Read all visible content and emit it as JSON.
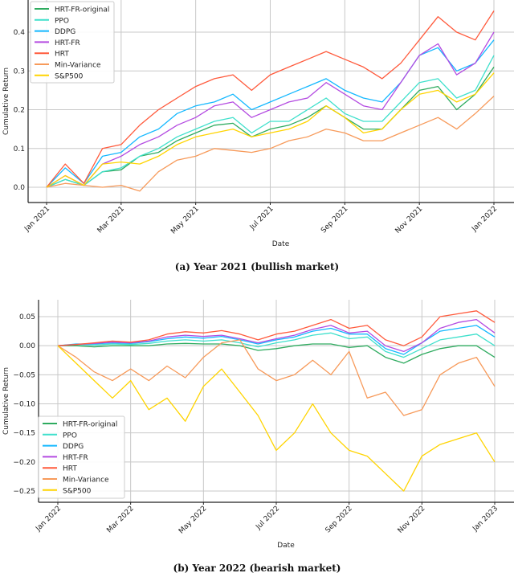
{
  "chart_data": [
    {
      "type": "line",
      "caption": "(a) Year 2021 (bullish market)",
      "xlabel": "Date",
      "ylabel": "Cumulative Return",
      "x_tick_labels": [
        "Jan 2021",
        "Mar 2021",
        "May 2021",
        "Jul 2021",
        "Sep 2021",
        "Nov 2021",
        "Jan 2022"
      ],
      "x_tick_months": [
        0,
        2,
        4,
        6,
        8,
        10,
        12
      ],
      "y_ticks": [
        0.0,
        0.1,
        0.2,
        0.3,
        0.4
      ],
      "y_tick_labels": [
        "0.0",
        "0.1",
        "0.2",
        "0.3",
        "0.4"
      ],
      "ylim": [
        -0.035,
        0.46
      ],
      "grid": true,
      "legend_position": "top-left",
      "x_months": [
        0,
        0.5,
        1,
        1.5,
        2,
        2.5,
        3,
        3.5,
        4,
        4.5,
        5,
        5.5,
        6,
        6.5,
        7,
        7.5,
        8,
        8.5,
        9,
        9.5,
        10,
        10.5,
        11,
        11.5,
        12
      ],
      "series": [
        {
          "name": "HRT-FR-original",
          "color": "#2eab5f",
          "values": [
            0,
            0.02,
            0.005,
            0.04,
            0.045,
            0.08,
            0.09,
            0.12,
            0.14,
            0.16,
            0.165,
            0.13,
            0.15,
            0.16,
            0.18,
            0.21,
            0.18,
            0.15,
            0.15,
            0.2,
            0.25,
            0.26,
            0.2,
            0.24,
            0.31
          ]
        },
        {
          "name": "PPO",
          "color": "#3fe0cc",
          "values": [
            0,
            0.02,
            0.005,
            0.04,
            0.05,
            0.08,
            0.1,
            0.13,
            0.15,
            0.17,
            0.18,
            0.14,
            0.17,
            0.17,
            0.2,
            0.23,
            0.19,
            0.17,
            0.17,
            0.22,
            0.27,
            0.28,
            0.23,
            0.25,
            0.34
          ]
        },
        {
          "name": "DDPG",
          "color": "#14b8ff",
          "values": [
            0,
            0.05,
            0.01,
            0.08,
            0.09,
            0.13,
            0.15,
            0.19,
            0.21,
            0.22,
            0.24,
            0.2,
            0.22,
            0.24,
            0.26,
            0.28,
            0.25,
            0.23,
            0.22,
            0.27,
            0.34,
            0.36,
            0.3,
            0.32,
            0.38
          ]
        },
        {
          "name": "HRT-FR",
          "color": "#b44be1",
          "values": [
            0,
            0.03,
            0.005,
            0.06,
            0.08,
            0.11,
            0.13,
            0.16,
            0.18,
            0.21,
            0.22,
            0.18,
            0.2,
            0.22,
            0.23,
            0.27,
            0.24,
            0.21,
            0.2,
            0.27,
            0.34,
            0.37,
            0.29,
            0.32,
            0.4
          ]
        },
        {
          "name": "HRT",
          "color": "#ff5a3c",
          "values": [
            0,
            0.06,
            0.01,
            0.1,
            0.11,
            0.16,
            0.2,
            0.23,
            0.26,
            0.28,
            0.29,
            0.25,
            0.29,
            0.31,
            0.33,
            0.35,
            0.33,
            0.31,
            0.28,
            0.32,
            0.38,
            0.44,
            0.4,
            0.38,
            0.455
          ]
        },
        {
          "name": "Min-Variance",
          "color": "#f79a5a",
          "values": [
            0,
            0.01,
            0.005,
            0,
            0.005,
            -0.01,
            0.04,
            0.07,
            0.08,
            0.1,
            0.095,
            0.09,
            0.1,
            0.12,
            0.13,
            0.15,
            0.14,
            0.12,
            0.12,
            0.14,
            0.16,
            0.18,
            0.15,
            0.19,
            0.235
          ]
        },
        {
          "name": "S&P500",
          "color": "#ffd400",
          "values": [
            0,
            0.03,
            0.005,
            0.06,
            0.065,
            0.06,
            0.08,
            0.11,
            0.13,
            0.14,
            0.15,
            0.13,
            0.14,
            0.15,
            0.17,
            0.21,
            0.18,
            0.14,
            0.15,
            0.2,
            0.24,
            0.25,
            0.22,
            0.24,
            0.295
          ]
        }
      ]
    },
    {
      "type": "line",
      "caption": "(b) Year 2022 (bearish market)",
      "xlabel": "Date",
      "ylabel": "Cumulative Return",
      "x_tick_labels": [
        "Jan 2022",
        "Mar 2022",
        "May 2022",
        "Jul 2022",
        "Sep 2022",
        "Nov 2022",
        "Jan 2023"
      ],
      "x_tick_months": [
        0,
        2,
        4,
        6,
        8,
        10,
        12
      ],
      "y_ticks": [
        0.05,
        0.0,
        -0.05,
        -0.1,
        -0.15,
        -0.2,
        -0.25
      ],
      "y_tick_labels": [
        "0.05",
        "0.00",
        "−0.05",
        "−0.10",
        "−0.15",
        "−0.20",
        "−0.25"
      ],
      "ylim": [
        -0.27,
        0.075
      ],
      "grid": true,
      "legend_position": "lower-left",
      "x_months": [
        0,
        0.5,
        1,
        1.5,
        2,
        2.5,
        3,
        3.5,
        4,
        4.5,
        5,
        5.5,
        6,
        6.5,
        7,
        7.5,
        8,
        8.5,
        9,
        9.5,
        10,
        10.5,
        11,
        11.5,
        12
      ],
      "series": [
        {
          "name": "HRT-FR-original",
          "color": "#2eab5f",
          "values": [
            0,
            0,
            -0.002,
            0,
            0,
            0,
            0.003,
            0.004,
            0.003,
            0.003,
            0,
            -0.008,
            -0.005,
            0,
            0.003,
            0.003,
            -0.003,
            0,
            -0.02,
            -0.03,
            -0.015,
            -0.005,
            0,
            0,
            -0.02
          ]
        },
        {
          "name": "PPO",
          "color": "#3fe0cc",
          "values": [
            0,
            0.002,
            0.001,
            0.003,
            0.002,
            0.004,
            0.008,
            0.01,
            0.008,
            0.01,
            0.005,
            -0.002,
            0.005,
            0.01,
            0.018,
            0.022,
            0.012,
            0.015,
            -0.01,
            -0.02,
            -0.005,
            0.01,
            0.015,
            0.02,
            0
          ]
        },
        {
          "name": "DDPG",
          "color": "#14b8ff",
          "values": [
            0,
            0.003,
            0.003,
            0.005,
            0.004,
            0.007,
            0.012,
            0.015,
            0.013,
            0.016,
            0.01,
            0.003,
            0.01,
            0.015,
            0.025,
            0.03,
            0.02,
            0.02,
            -0.005,
            -0.015,
            0.005,
            0.025,
            0.03,
            0.035,
            0.015
          ]
        },
        {
          "name": "HRT-FR",
          "color": "#b44be1",
          "values": [
            0,
            0.002,
            0.004,
            0.006,
            0.005,
            0.008,
            0.015,
            0.018,
            0.016,
            0.018,
            0.012,
            0.005,
            0.012,
            0.018,
            0.028,
            0.035,
            0.022,
            0.025,
            0,
            -0.01,
            0.005,
            0.03,
            0.04,
            0.045,
            0.022
          ]
        },
        {
          "name": "HRT",
          "color": "#ff5a3c",
          "values": [
            0,
            0.002,
            0.005,
            0.008,
            0.006,
            0.01,
            0.02,
            0.024,
            0.022,
            0.026,
            0.02,
            0.01,
            0.02,
            0.025,
            0.035,
            0.045,
            0.03,
            0.035,
            0.01,
            0,
            0.015,
            0.05,
            0.055,
            0.06,
            0.04
          ]
        },
        {
          "name": "Min-Variance",
          "color": "#f79a5a",
          "values": [
            0,
            -0.02,
            -0.045,
            -0.06,
            -0.04,
            -0.06,
            -0.035,
            -0.055,
            -0.02,
            0.005,
            0.01,
            -0.04,
            -0.06,
            -0.05,
            -0.025,
            -0.05,
            -0.01,
            -0.09,
            -0.08,
            -0.12,
            -0.11,
            -0.05,
            -0.03,
            -0.02,
            -0.07
          ]
        },
        {
          "name": "S&P500",
          "color": "#ffd400",
          "values": [
            0,
            -0.03,
            -0.06,
            -0.09,
            -0.06,
            -0.11,
            -0.09,
            -0.13,
            -0.07,
            -0.04,
            -0.08,
            -0.12,
            -0.18,
            -0.15,
            -0.1,
            -0.15,
            -0.18,
            -0.19,
            -0.22,
            -0.25,
            -0.19,
            -0.17,
            -0.16,
            -0.15,
            -0.2
          ]
        }
      ]
    }
  ]
}
